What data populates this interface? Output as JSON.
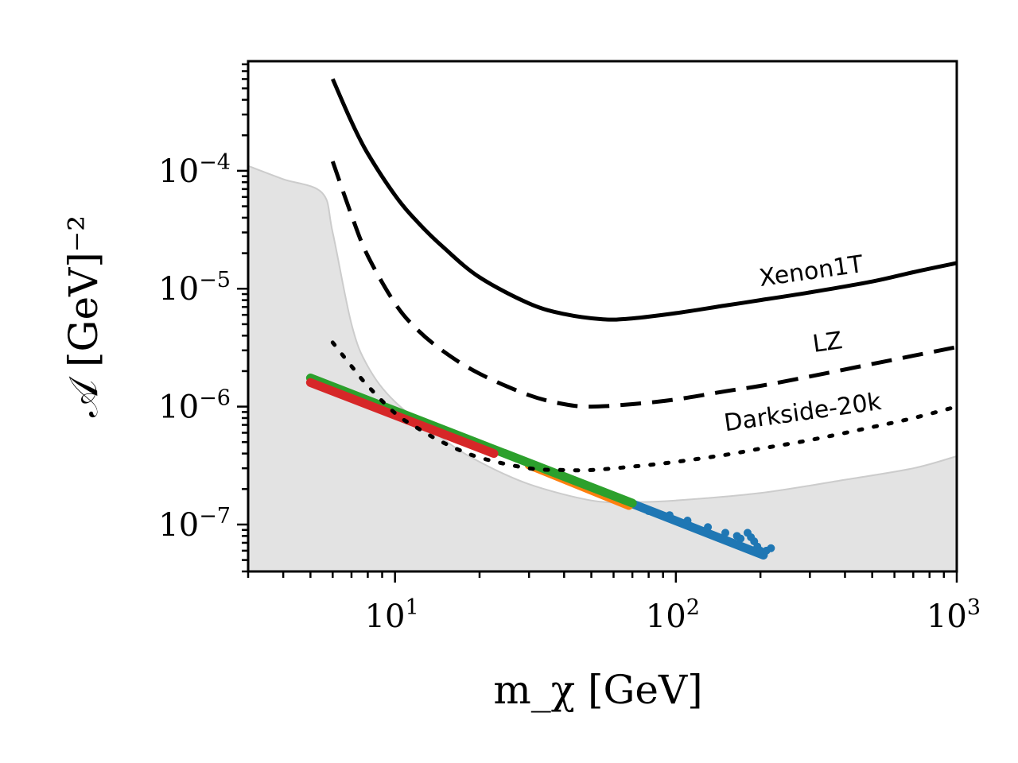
{
  "chart_data": {
    "type": "scatter",
    "title": "",
    "xlabel": "m_χ  [GeV]",
    "ylabel": "𝒜 [GeV]⁻²",
    "xscale": "log",
    "yscale": "log",
    "xlim": [
      3,
      1000
    ],
    "ylim": [
      4e-08,
      0.00085
    ],
    "grid": false,
    "legend": "none",
    "x_ticks": [
      {
        "base": "10",
        "exp": "1",
        "value": 10
      },
      {
        "base": "10",
        "exp": "2",
        "value": 100
      },
      {
        "base": "10",
        "exp": "3",
        "value": 1000
      }
    ],
    "y_ticks": [
      {
        "base": "10",
        "exp": "−4",
        "value": 0.0001
      },
      {
        "base": "10",
        "exp": "−5",
        "value": 1e-05
      },
      {
        "base": "10",
        "exp": "−6",
        "value": 1e-06
      },
      {
        "base": "10",
        "exp": "−7",
        "value": 1e-07
      }
    ],
    "excluded_region": {
      "color": "#e3e3e3",
      "edge_color": "#cccccc",
      "boundary": [
        [
          3,
          0.00011
        ],
        [
          4,
          8.5e-05
        ],
        [
          5.5,
          6.5e-05
        ],
        [
          6,
          3e-05
        ],
        [
          7,
          5e-06
        ],
        [
          8,
          2.2e-06
        ],
        [
          10,
          1.1e-06
        ],
        [
          15,
          5.2e-07
        ],
        [
          20,
          3.4e-07
        ],
        [
          30,
          2.2e-07
        ],
        [
          50,
          1.6e-07
        ],
        [
          70,
          1.55e-07
        ],
        [
          100,
          1.6e-07
        ],
        [
          200,
          1.85e-07
        ],
        [
          400,
          2.4e-07
        ],
        [
          700,
          3e-07
        ],
        [
          1000,
          3.8e-07
        ]
      ]
    },
    "limit_curves": [
      {
        "name": "Xenon1T",
        "style": "solid",
        "label_pos": [
          200,
          1.05e-05
        ],
        "label_angle": -8,
        "points": [
          [
            6,
            0.0006
          ],
          [
            7,
            0.00026
          ],
          [
            8,
            0.00014
          ],
          [
            10,
            6.2e-05
          ],
          [
            12,
            3.7e-05
          ],
          [
            15,
            2.2e-05
          ],
          [
            20,
            1.25e-05
          ],
          [
            30,
            7.5e-06
          ],
          [
            40,
            6.1e-06
          ],
          [
            55,
            5.5e-06
          ],
          [
            70,
            5.6e-06
          ],
          [
            100,
            6.2e-06
          ],
          [
            150,
            7.2e-06
          ],
          [
            200,
            8e-06
          ],
          [
            300,
            9.3e-06
          ],
          [
            500,
            1.15e-05
          ],
          [
            700,
            1.38e-05
          ],
          [
            1000,
            1.65e-05
          ]
        ]
      },
      {
        "name": "LZ",
        "style": "dashed",
        "label_pos": [
          310,
          2.9e-06
        ],
        "label_angle": -8,
        "points": [
          [
            6,
            0.00012
          ],
          [
            7,
            4.2e-05
          ],
          [
            8,
            1.9e-05
          ],
          [
            10,
            7.5e-06
          ],
          [
            12,
            4.5e-06
          ],
          [
            15,
            2.9e-06
          ],
          [
            20,
            1.9e-06
          ],
          [
            30,
            1.25e-06
          ],
          [
            40,
            1.05e-06
          ],
          [
            50,
            1e-06
          ],
          [
            70,
            1.05e-06
          ],
          [
            100,
            1.15e-06
          ],
          [
            150,
            1.35e-06
          ],
          [
            200,
            1.5e-06
          ],
          [
            300,
            1.8e-06
          ],
          [
            500,
            2.3e-06
          ],
          [
            700,
            2.7e-06
          ],
          [
            1000,
            3.2e-06
          ]
        ]
      },
      {
        "name": "Darkside-20k",
        "style": "dotted",
        "label_pos": [
          150,
          6.2e-07
        ],
        "label_angle": -8,
        "points": [
          [
            6,
            3.5e-06
          ],
          [
            7,
            2.2e-06
          ],
          [
            8,
            1.5e-06
          ],
          [
            10,
            8.8e-07
          ],
          [
            12,
            6.6e-07
          ],
          [
            15,
            4.9e-07
          ],
          [
            20,
            3.7e-07
          ],
          [
            30,
            3e-07
          ],
          [
            40,
            2.9e-07
          ],
          [
            50,
            2.9e-07
          ],
          [
            70,
            3.1e-07
          ],
          [
            100,
            3.4e-07
          ],
          [
            150,
            3.9e-07
          ],
          [
            200,
            4.4e-07
          ],
          [
            300,
            5.2e-07
          ],
          [
            500,
            6.7e-07
          ],
          [
            700,
            8e-07
          ],
          [
            1000,
            1e-06
          ]
        ]
      }
    ],
    "series": [
      {
        "color": "#1f77b4",
        "line": [
          [
            70,
            1.5e-07
          ],
          [
            205,
            5.5e-08
          ]
        ],
        "points": [
          [
            80,
            1.3e-07
          ],
          [
            95,
            1.2e-07
          ],
          [
            110,
            1.08e-07
          ],
          [
            130,
            9.5e-08
          ],
          [
            150,
            8.5e-08
          ],
          [
            165,
            8e-08
          ],
          [
            180,
            8.5e-08
          ],
          [
            190,
            7.2e-08
          ],
          [
            195,
            6.5e-08
          ],
          [
            200,
            6e-08
          ],
          [
            210,
            6e-08
          ],
          [
            218,
            6.3e-08
          ],
          [
            185,
            7.8e-08
          ],
          [
            170,
            7.6e-08
          ]
        ]
      },
      {
        "color": "#ff7f0e",
        "line": [
          [
            30,
            3.2e-07
          ],
          [
            68,
            1.45e-07
          ]
        ],
        "points": []
      },
      {
        "color": "#2ca02c",
        "line": [
          [
            5,
            1.75e-06
          ],
          [
            70,
            1.52e-07
          ]
        ],
        "points": []
      },
      {
        "color": "#d62728",
        "line": [
          [
            5,
            1.6e-06
          ],
          [
            22.5,
            4e-07
          ]
        ],
        "points": []
      }
    ]
  }
}
